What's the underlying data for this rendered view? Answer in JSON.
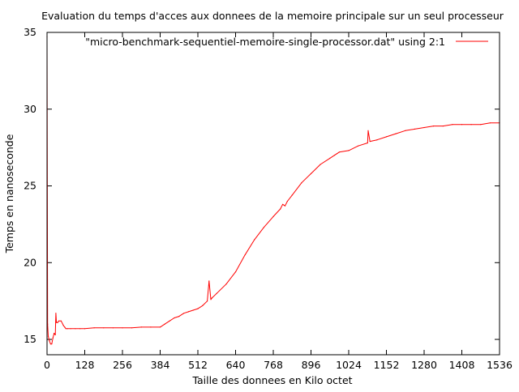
{
  "chart_data": {
    "type": "line",
    "title": "Evaluation du temps d'acces aux donnees de la memoire principale sur un seul processeur",
    "xlabel": "Taille des donnees en Kilo octet",
    "ylabel": "Temps en nanoseconde",
    "xlim": [
      0,
      1536
    ],
    "ylim": [
      14,
      35
    ],
    "xticks": [
      0,
      128,
      256,
      384,
      512,
      640,
      768,
      896,
      1024,
      1152,
      1280,
      1408,
      1536
    ],
    "yticks": [
      15,
      20,
      25,
      30,
      35
    ],
    "grid": false,
    "legend_position": "top-right",
    "series": [
      {
        "name": "\"micro-benchmark-sequentiel-memoire-single-processor.dat\" using 2:1",
        "color": "#ff0000",
        "x": [
          0,
          2,
          4,
          8,
          12,
          16,
          20,
          24,
          28,
          30,
          32,
          36,
          40,
          48,
          56,
          60,
          64,
          70,
          80,
          96,
          112,
          128,
          160,
          192,
          224,
          256,
          288,
          320,
          352,
          384,
          400,
          416,
          432,
          448,
          464,
          480,
          496,
          512,
          528,
          544,
          550,
          556,
          560,
          576,
          608,
          640,
          672,
          704,
          736,
          768,
          792,
          800,
          808,
          816,
          832,
          864,
          896,
          928,
          960,
          976,
          984,
          992,
          1024,
          1056,
          1088,
          1090,
          1096,
          1120,
          1152,
          1184,
          1216,
          1248,
          1280,
          1312,
          1344,
          1376,
          1408,
          1440,
          1472,
          1504,
          1536
        ],
        "y": [
          34.7,
          16.0,
          15.2,
          14.9,
          14.7,
          14.7,
          15.1,
          15.4,
          15.3,
          16.7,
          16.1,
          16.1,
          16.2,
          16.2,
          15.9,
          15.8,
          15.7,
          15.7,
          15.7,
          15.7,
          15.7,
          15.7,
          15.75,
          15.75,
          15.75,
          15.75,
          15.75,
          15.8,
          15.8,
          15.8,
          16.0,
          16.2,
          16.4,
          16.5,
          16.7,
          16.8,
          16.9,
          17.0,
          17.2,
          17.5,
          18.8,
          17.6,
          17.7,
          18.0,
          18.6,
          19.4,
          20.5,
          21.5,
          22.3,
          23.0,
          23.5,
          23.8,
          23.7,
          24.0,
          24.4,
          25.2,
          25.8,
          26.4,
          26.8,
          27.0,
          27.1,
          27.2,
          27.3,
          27.6,
          27.8,
          28.6,
          27.9,
          28.0,
          28.2,
          28.4,
          28.6,
          28.7,
          28.8,
          28.9,
          28.9,
          29.0,
          29.0,
          29.0,
          29.0,
          29.1,
          29.1
        ]
      }
    ]
  }
}
